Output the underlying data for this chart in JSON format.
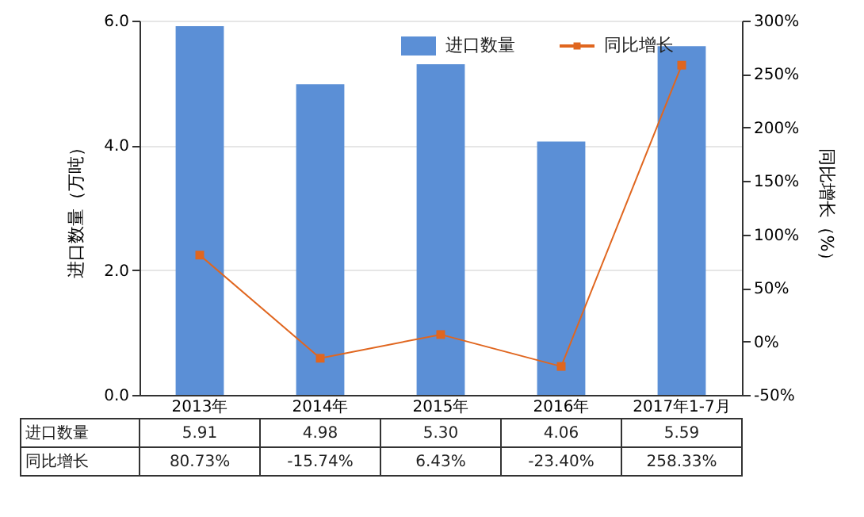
{
  "chart_data": {
    "type": "bar",
    "categories": [
      "2013年",
      "2014年",
      "2015年",
      "2016年",
      "2017年1-7月"
    ],
    "ylabel": "进口数量（万吨）",
    "y2label": "同比增长（%）",
    "series": [
      {
        "name": "进口数量",
        "color": "#5b8fd6",
        "values": [
          5.91,
          4.98,
          5.3,
          4.06,
          5.59
        ],
        "value_labels": [
          "5.91",
          "4.98",
          "5.30",
          "4.06",
          "5.59"
        ]
      },
      {
        "name": "同比增长",
        "type": "line",
        "axis": "y2",
        "color": "#e0661f",
        "marker": "square",
        "values": [
          80.73,
          -15.74,
          6.43,
          -23.4,
          258.33
        ],
        "value_labels": [
          "80.73%",
          "-15.74%",
          "6.43%",
          "-23.40%",
          "258.33%"
        ]
      }
    ],
    "ylim": [
      0,
      6
    ],
    "yticks": [
      {
        "value": 0,
        "label": "0.0"
      },
      {
        "value": 2,
        "label": "2.0"
      },
      {
        "value": 4,
        "label": "4.0"
      },
      {
        "value": 6,
        "label": "6.0"
      }
    ],
    "y2lim": [
      -50,
      300
    ],
    "y2ticks": [
      {
        "value": -50,
        "label": "-50%"
      },
      {
        "value": 0,
        "label": "0%"
      },
      {
        "value": 50,
        "label": "50%"
      },
      {
        "value": 100,
        "label": "100%"
      },
      {
        "value": 150,
        "label": "150%"
      },
      {
        "value": 200,
        "label": "200%"
      },
      {
        "value": 250,
        "label": "250%"
      },
      {
        "value": 300,
        "label": "300%"
      }
    ],
    "grid": "y",
    "legend": "top right"
  }
}
